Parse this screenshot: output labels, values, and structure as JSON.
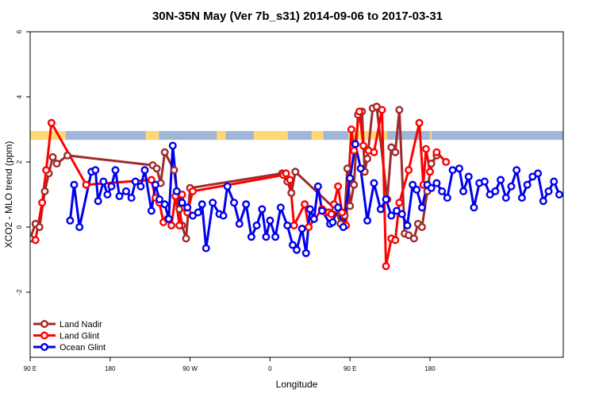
{
  "chart_data": {
    "type": "line",
    "title": "30N-35N May (Ver 7b_s31)   2014-09-06 to 2017-03-31",
    "xlabel": "Longitude",
    "ylabel": "XCO2 - MLO trend (ppm)",
    "xlim": [
      -90,
      270
    ],
    "ylim": [
      -4,
      6
    ],
    "x_ticks": [
      {
        "value": -90,
        "label": "90 E"
      },
      {
        "value": -36,
        "label": "180"
      },
      {
        "value": 18,
        "label": "90 W"
      },
      {
        "value": 72,
        "label": "0"
      },
      {
        "value": 126,
        "label": "90 E"
      },
      {
        "value": 180,
        "label": "180"
      }
    ],
    "y_ticks": [
      {
        "value": -2,
        "label": "-2"
      },
      {
        "value": 0,
        "label": "0"
      },
      {
        "value": 2,
        "label": "2"
      },
      {
        "value": 4,
        "label": "4"
      },
      {
        "value": 6,
        "label": "6"
      }
    ],
    "grid": false,
    "legend_position": "bottom-left",
    "band": {
      "y_range": [
        2.68,
        2.95
      ],
      "colors": {
        "ocean": "#9fb6d8",
        "land": "#ffd875"
      },
      "land_segments": [
        [
          -90,
          -66
        ],
        [
          -12,
          -3
        ],
        [
          36,
          42
        ],
        [
          61,
          84
        ],
        [
          100,
          108
        ],
        [
          125,
          151
        ],
        [
          180,
          181
        ]
      ]
    },
    "series": [
      {
        "name": "Land Nadir",
        "color": "#a02a2a",
        "x": [
          -90,
          -86.4,
          -83.7,
          -80.1,
          -77.4,
          -74.7,
          -72,
          -64.8,
          -7.2,
          -4.5,
          -1.8,
          0.9,
          7.2,
          10.8,
          12.6,
          15.3,
          18,
          80.1,
          83.7,
          86.4,
          89.1,
          116.1,
          119.7,
          122.4,
          124.2,
          126,
          128.7,
          131.4,
          134.1,
          135.9,
          137.7,
          141.3,
          144,
          151.2,
          153.9,
          156.6,
          159.3,
          162.9,
          165.6,
          169.2,
          171.9,
          174.6,
          178.2,
          180.9,
          184.5
        ],
        "y": [
          -0.35,
          0.1,
          0.0,
          1.1,
          1.65,
          2.15,
          1.95,
          2.2,
          1.9,
          1.8,
          1.35,
          2.3,
          1.75,
          0.55,
          0.05,
          -0.35,
          1.2,
          1.65,
          1.4,
          1.05,
          1.7,
          0.55,
          0.1,
          0.35,
          1.8,
          0.65,
          1.3,
          3.45,
          3.55,
          1.7,
          2.1,
          3.65,
          3.7,
          0.85,
          2.45,
          2.3,
          3.6,
          -0.2,
          -0.25,
          -0.35,
          0.1,
          0.0,
          1.1,
          1.95,
          2.2
        ]
      },
      {
        "name": "Land Glint",
        "color": "#ff0000",
        "x": [
          -86.4,
          -81.9,
          -79.2,
          -75.6,
          -52.2,
          -8.1,
          -5.4,
          -2.7,
          0,
          2.7,
          5.4,
          8.1,
          10.8,
          12.6,
          14.4,
          16.2,
          19.8,
          81,
          82.8,
          85.5,
          88.2,
          95.4,
          98.1,
          107.1,
          109.8,
          111.6,
          113.4,
          115.2,
          117.9,
          120.6,
          123.3,
          126.9,
          128.7,
          132.3,
          135,
          138.6,
          142.2,
          147.6,
          150.3,
          153.9,
          156.6,
          159.3,
          165.6,
          172.8,
          175.5,
          177.3,
          180,
          184.5,
          190.8
        ],
        "y": [
          -0.4,
          0.75,
          1.75,
          3.2,
          1.3,
          1.45,
          0.9,
          0.75,
          0.15,
          0.25,
          0.05,
          0.95,
          0.05,
          1.0,
          0.6,
          0.45,
          1.1,
          1.6,
          1.65,
          1.45,
          0.05,
          0.7,
          0.0,
          0.55,
          0.45,
          0.45,
          0.4,
          0.7,
          1.25,
          0.45,
          0.05,
          3.0,
          2.35,
          3.55,
          2.5,
          2.35,
          2.3,
          3.6,
          -1.2,
          -0.35,
          -0.4,
          0.75,
          1.75,
          3.2,
          1.3,
          2.4,
          1.7,
          2.3,
          2.0
        ]
      },
      {
        "name": "Ocean Glint",
        "color": "#0000ee",
        "x": [
          -63,
          -60.3,
          -56.7,
          -48.6,
          -45.9,
          -44.1,
          -40.5,
          -37.8,
          -35.1,
          -32.4,
          -29.7,
          -25.2,
          -21.6,
          -18.9,
          -15.3,
          -12.6,
          -8.1,
          -5.4,
          -2.7,
          0.9,
          3.6,
          6.3,
          9,
          12.6,
          16.2,
          19.8,
          23.4,
          26.1,
          28.8,
          33.3,
          37.8,
          40.5,
          43.2,
          47.7,
          51.3,
          55.8,
          59.4,
          63,
          66.6,
          69.3,
          72,
          75.6,
          79.2,
          83.7,
          87.3,
          90,
          93.6,
          96.3,
          99,
          101.7,
          104.4,
          107.1,
          112.5,
          114.3,
          117.9,
          121.5,
          126,
          129.6,
          133.2,
          137.7,
          142.2,
          146.7,
          150.3,
          153.9,
          157.5,
          161.1,
          164.7,
          168.3,
          171,
          174.6,
          178.2,
          180.9,
          184.5,
          188.1,
          191.7,
          195.3,
          199.8,
          202.5,
          206.1,
          209.7,
          213.3,
          216.9,
          220.5,
          224.1,
          227.7,
          231.3,
          234.9,
          238.5,
          242.1,
          245.7,
          249.3,
          252.9,
          256.5,
          260.1,
          263.7,
          267.3
        ],
        "y": [
          0.2,
          1.3,
          0.0,
          1.7,
          1.75,
          0.8,
          1.4,
          1.0,
          1.25,
          1.75,
          0.95,
          1.1,
          0.9,
          1.4,
          1.25,
          1.75,
          0.5,
          1.3,
          0.85,
          0.7,
          0.25,
          2.5,
          1.1,
          0.75,
          0.6,
          0.35,
          0.45,
          0.7,
          -0.65,
          0.75,
          0.4,
          0.35,
          1.25,
          0.75,
          0.1,
          0.7,
          -0.3,
          0.05,
          0.55,
          -0.3,
          0.2,
          -0.3,
          0.6,
          0.05,
          -0.55,
          -0.7,
          -0.05,
          -0.8,
          0.55,
          0.25,
          1.25,
          0.5,
          0.1,
          0.15,
          0.6,
          0.0,
          1.5,
          2.55,
          1.8,
          0.2,
          1.35,
          0.55,
          0.85,
          0.35,
          0.5,
          0.4,
          0.05,
          1.3,
          1.15,
          0.6,
          1.3,
          1.2,
          1.35,
          1.1,
          0.9,
          1.75,
          1.8,
          1.1,
          1.55,
          0.6,
          1.35,
          1.4,
          1.0,
          1.1,
          1.45,
          0.9,
          1.25,
          1.75,
          0.9,
          1.3,
          1.55,
          1.65,
          0.8,
          1.1,
          1.4,
          1.0
        ]
      }
    ]
  }
}
